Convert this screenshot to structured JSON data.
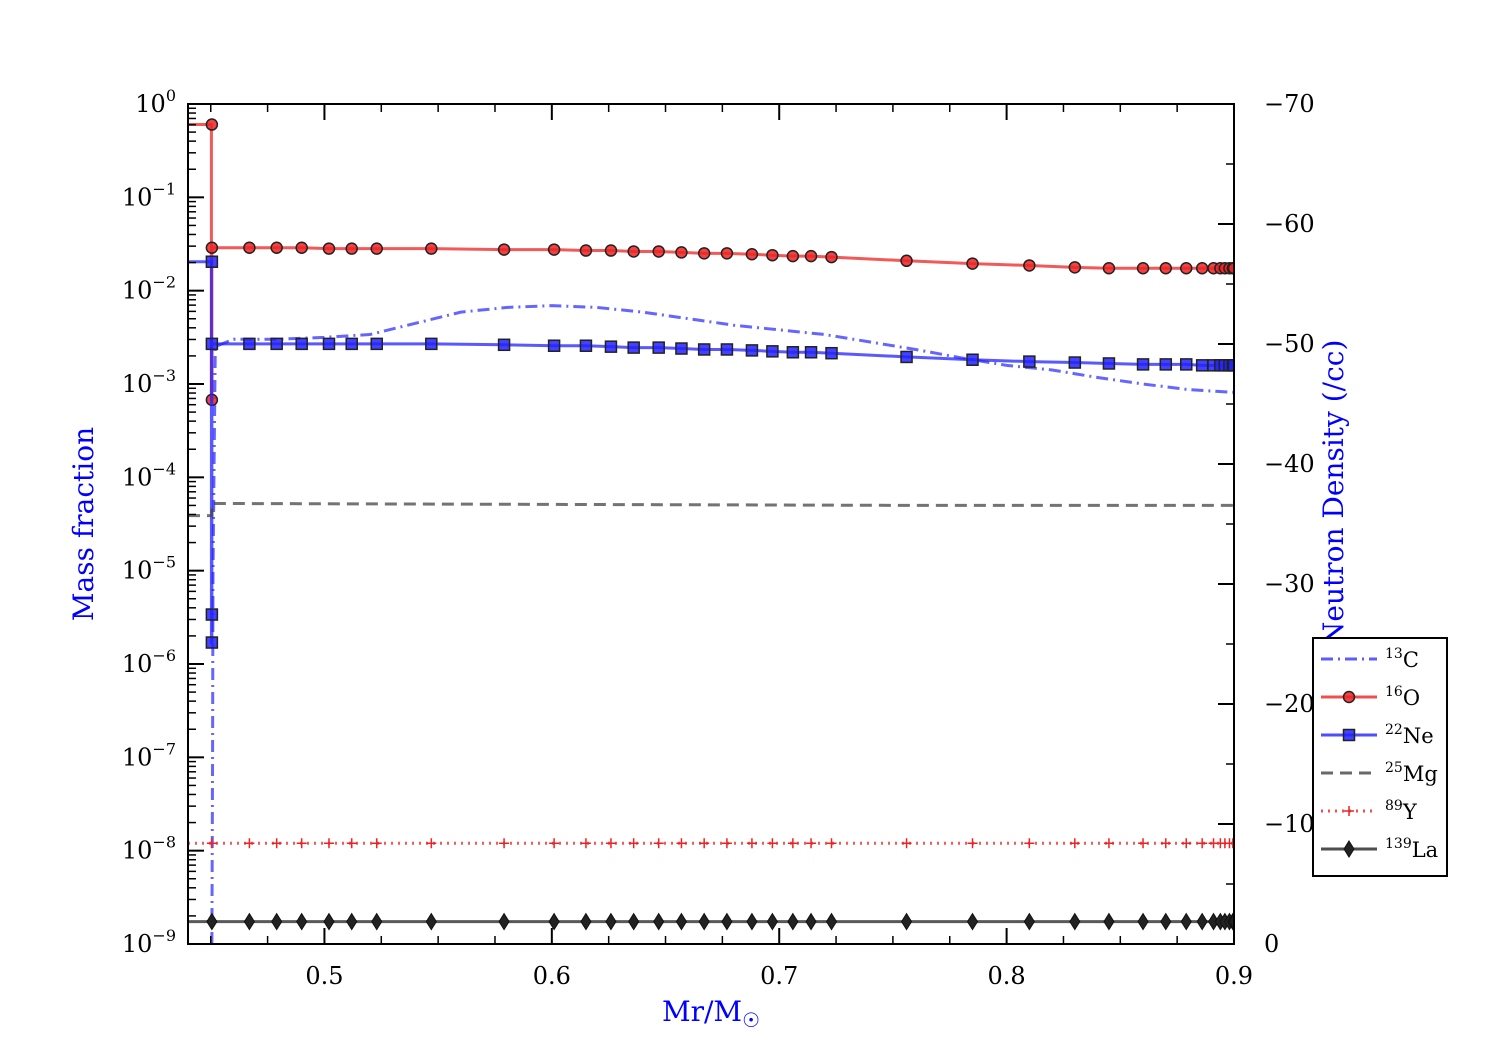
{
  "chart_data": {
    "type": "line",
    "title": "",
    "xlabel": "Mr/M",
    "xlabel_symbol": "☉",
    "ylabel_left": "Mass fraction",
    "ylabel_right": "Log Neutron Density (/cc)",
    "axis_label_color": "#0000ff",
    "xlim": [
      0.44,
      0.9
    ],
    "ylim_left_log10": [
      -9,
      0
    ],
    "ylim_right": [
      0,
      -70
    ],
    "left_scale": "log",
    "grid": false,
    "legend_position": "right",
    "x_ticks": [
      "0.5",
      "0.6",
      "0.7",
      "0.8",
      "0.9"
    ],
    "left_ticks": [
      {
        "base": "10",
        "exp": "0",
        "value": 0
      },
      {
        "base": "10",
        "exp": "−1",
        "value": -1
      },
      {
        "base": "10",
        "exp": "−2",
        "value": -2
      },
      {
        "base": "10",
        "exp": "−3",
        "value": -3
      },
      {
        "base": "10",
        "exp": "−4",
        "value": -4
      },
      {
        "base": "10",
        "exp": "−5",
        "value": -5
      },
      {
        "base": "10",
        "exp": "−6",
        "value": -6
      },
      {
        "base": "10",
        "exp": "−7",
        "value": -7
      },
      {
        "base": "10",
        "exp": "−8",
        "value": -8
      },
      {
        "base": "10",
        "exp": "−9",
        "value": -9
      }
    ],
    "right_ticks": [
      {
        "label": "−70",
        "value": -70
      },
      {
        "label": "−60",
        "value": -60
      },
      {
        "label": "−50",
        "value": -50
      },
      {
        "label": "−40",
        "value": -40
      },
      {
        "label": "−30",
        "value": -30
      },
      {
        "label": "−20",
        "value": -20
      },
      {
        "label": "−10",
        "value": -10
      },
      {
        "label": "0",
        "value": 0
      }
    ],
    "marker_x": [
      0.4505,
      0.467,
      0.479,
      0.49,
      0.502,
      0.512,
      0.523,
      0.547,
      0.579,
      0.601,
      0.615,
      0.626,
      0.636,
      0.647,
      0.657,
      0.667,
      0.677,
      0.688,
      0.697,
      0.706,
      0.714,
      0.723,
      0.756,
      0.785,
      0.81,
      0.83,
      0.845,
      0.86,
      0.87,
      0.879,
      0.886,
      0.891,
      0.894,
      0.896,
      0.898,
      0.8995,
      0.9
    ],
    "series": [
      {
        "name": "C",
        "mass_number": "13",
        "color": "#3333ff",
        "style": "dashdot",
        "marker": "none",
        "x": [
          0.4505,
          0.4508,
          0.451,
          0.452,
          0.46,
          0.48,
          0.5,
          0.52,
          0.54,
          0.56,
          0.58,
          0.6,
          0.62,
          0.64,
          0.66,
          0.68,
          0.7,
          0.72,
          0.74,
          0.76,
          0.78,
          0.8,
          0.82,
          0.84,
          0.86,
          0.88,
          0.9
        ],
        "log10_y": [
          -9.0,
          -7.0,
          -5.0,
          -2.6,
          -2.52,
          -2.52,
          -2.5,
          -2.47,
          -2.35,
          -2.23,
          -2.18,
          -2.16,
          -2.18,
          -2.23,
          -2.3,
          -2.37,
          -2.42,
          -2.47,
          -2.55,
          -2.63,
          -2.72,
          -2.8,
          -2.85,
          -2.93,
          -3.0,
          -3.06,
          -3.09
        ]
      },
      {
        "name": "O",
        "mass_number": "16",
        "color": "#ee2222",
        "style": "solid",
        "marker": "circle",
        "pre_x": [
          0.44,
          0.4503,
          0.4503,
          0.4505
        ],
        "pre_log10_y": [
          -0.22,
          -0.22,
          -3.17,
          -3.17
        ],
        "log10_y": [
          -1.54,
          -1.54,
          -1.54,
          -1.54,
          -1.55,
          -1.55,
          -1.55,
          -1.55,
          -1.56,
          -1.56,
          -1.57,
          -1.57,
          -1.58,
          -1.58,
          -1.59,
          -1.6,
          -1.6,
          -1.61,
          -1.62,
          -1.63,
          -1.63,
          -1.64,
          -1.68,
          -1.71,
          -1.73,
          -1.75,
          -1.76,
          -1.76,
          -1.76,
          -1.76,
          -1.76,
          -1.76,
          -1.76,
          -1.76,
          -1.76,
          -1.76,
          -1.76
        ],
        "extra_markers": [
          [
            0.4505,
            -0.22
          ],
          [
            0.4505,
            -3.17
          ]
        ]
      },
      {
        "name": "Ne",
        "mass_number": "22",
        "color": "#2222ff",
        "style": "solid",
        "marker": "square",
        "pre_x": [
          0.44,
          0.4503,
          0.4503,
          0.4505
        ],
        "pre_log10_y": [
          -1.69,
          -1.69,
          -5.77,
          -5.77
        ],
        "log10_y": [
          -2.57,
          -2.57,
          -2.57,
          -2.57,
          -2.57,
          -2.57,
          -2.57,
          -2.57,
          -2.58,
          -2.59,
          -2.59,
          -2.6,
          -2.61,
          -2.61,
          -2.62,
          -2.63,
          -2.63,
          -2.64,
          -2.65,
          -2.66,
          -2.66,
          -2.67,
          -2.71,
          -2.74,
          -2.76,
          -2.77,
          -2.78,
          -2.79,
          -2.79,
          -2.79,
          -2.8,
          -2.8,
          -2.8,
          -2.8,
          -2.8,
          -2.8,
          -2.8
        ],
        "extra_markers": [
          [
            0.4505,
            -1.69
          ],
          [
            0.4505,
            -5.47
          ],
          [
            0.4505,
            -5.77
          ]
        ]
      },
      {
        "name": "Mg",
        "mass_number": "25",
        "color": "#444444",
        "style": "dashed",
        "marker": "none",
        "x": [
          0.44,
          0.4505,
          0.4505,
          0.6,
          0.75,
          0.9
        ],
        "log10_y": [
          -4.41,
          -4.41,
          -4.28,
          -4.29,
          -4.3,
          -4.3
        ]
      },
      {
        "name": "Y",
        "mass_number": "89",
        "color": "#ee2222",
        "style": "dotted",
        "marker": "plus",
        "log10_y": -7.92
      },
      {
        "name": "La",
        "mass_number": "139",
        "color": "#222222",
        "style": "solid",
        "marker": "diamond",
        "log10_y": -8.76
      }
    ]
  }
}
